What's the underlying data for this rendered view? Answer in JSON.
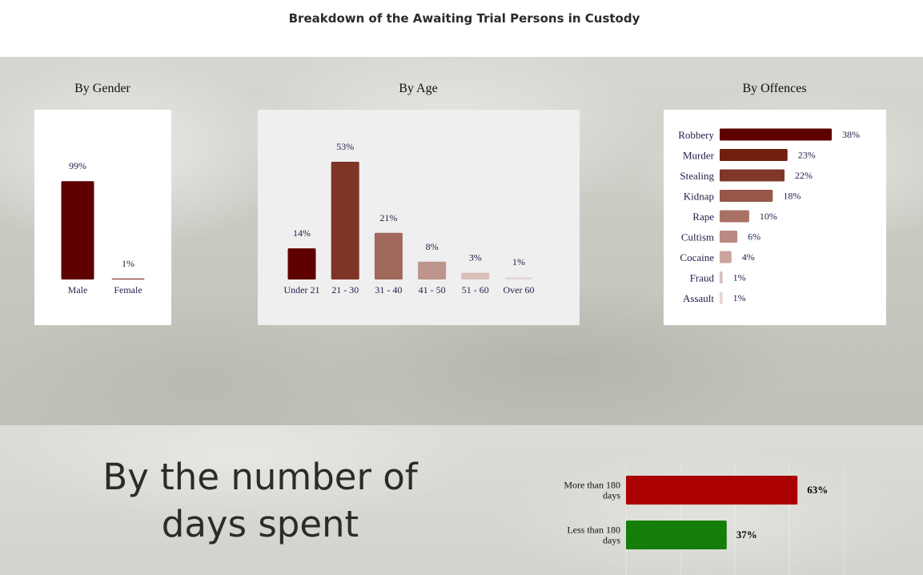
{
  "page": {
    "title": "Breakdown of the Awaiting Trial Persons in Custody",
    "days_heading": "By the number of days spent"
  },
  "colors": {
    "gender": [
      "#5e0000",
      "#8b3a2c"
    ],
    "age": [
      "#5e0000",
      "#7f3526",
      "#a1685c",
      "#be958c",
      "#d8bfba",
      "#e2d7d5"
    ],
    "offences": [
      "#5e0000",
      "#70200d",
      "#7f3828",
      "#96574a",
      "#a97066",
      "#b98a81",
      "#caa49d",
      "#d7bfba",
      "#e4d6d3"
    ],
    "days": [
      "#aa0000",
      "#157d0a"
    ]
  },
  "chart_data": [
    {
      "id": "gender",
      "type": "bar",
      "title": "By Gender",
      "categories": [
        "Male",
        "Female"
      ],
      "values": [
        99,
        1
      ],
      "value_labels": [
        "99%",
        "1%"
      ],
      "ylim": [
        0,
        100
      ],
      "grid": false
    },
    {
      "id": "age",
      "type": "bar",
      "title": "By Age",
      "categories": [
        "Under 21",
        "21 - 30",
        "31 - 40",
        "41 - 50",
        "51 - 60",
        "Over 60"
      ],
      "values": [
        14,
        53,
        21,
        8,
        3,
        1
      ],
      "value_labels": [
        "14%",
        "53%",
        "21%",
        "8%",
        "3%",
        "1%"
      ],
      "ylim": [
        0,
        53
      ],
      "grid": false
    },
    {
      "id": "offences",
      "type": "bar",
      "orientation": "horizontal",
      "title": "By Offences",
      "categories": [
        "Robbery",
        "Murder",
        "Stealing",
        "Kidnap",
        "Rape",
        "Cultism",
        "Cocaine",
        "Fraud",
        "Assault"
      ],
      "values": [
        38,
        23,
        22,
        18,
        10,
        6,
        4,
        1,
        1
      ],
      "value_labels": [
        "38%",
        "23%",
        "22%",
        "18%",
        "10%",
        "6%",
        "4%",
        "1%",
        "1%"
      ],
      "xlim": [
        0,
        38
      ],
      "grid": false
    },
    {
      "id": "days",
      "type": "bar",
      "orientation": "horizontal",
      "title": "By the number of days spent",
      "categories": [
        [
          "More than 180",
          "days"
        ],
        [
          "Less than 180",
          "days"
        ]
      ],
      "values": [
        63,
        37
      ],
      "value_labels": [
        "63%",
        "37%"
      ],
      "xlim": [
        0,
        100
      ],
      "grid": true
    }
  ]
}
